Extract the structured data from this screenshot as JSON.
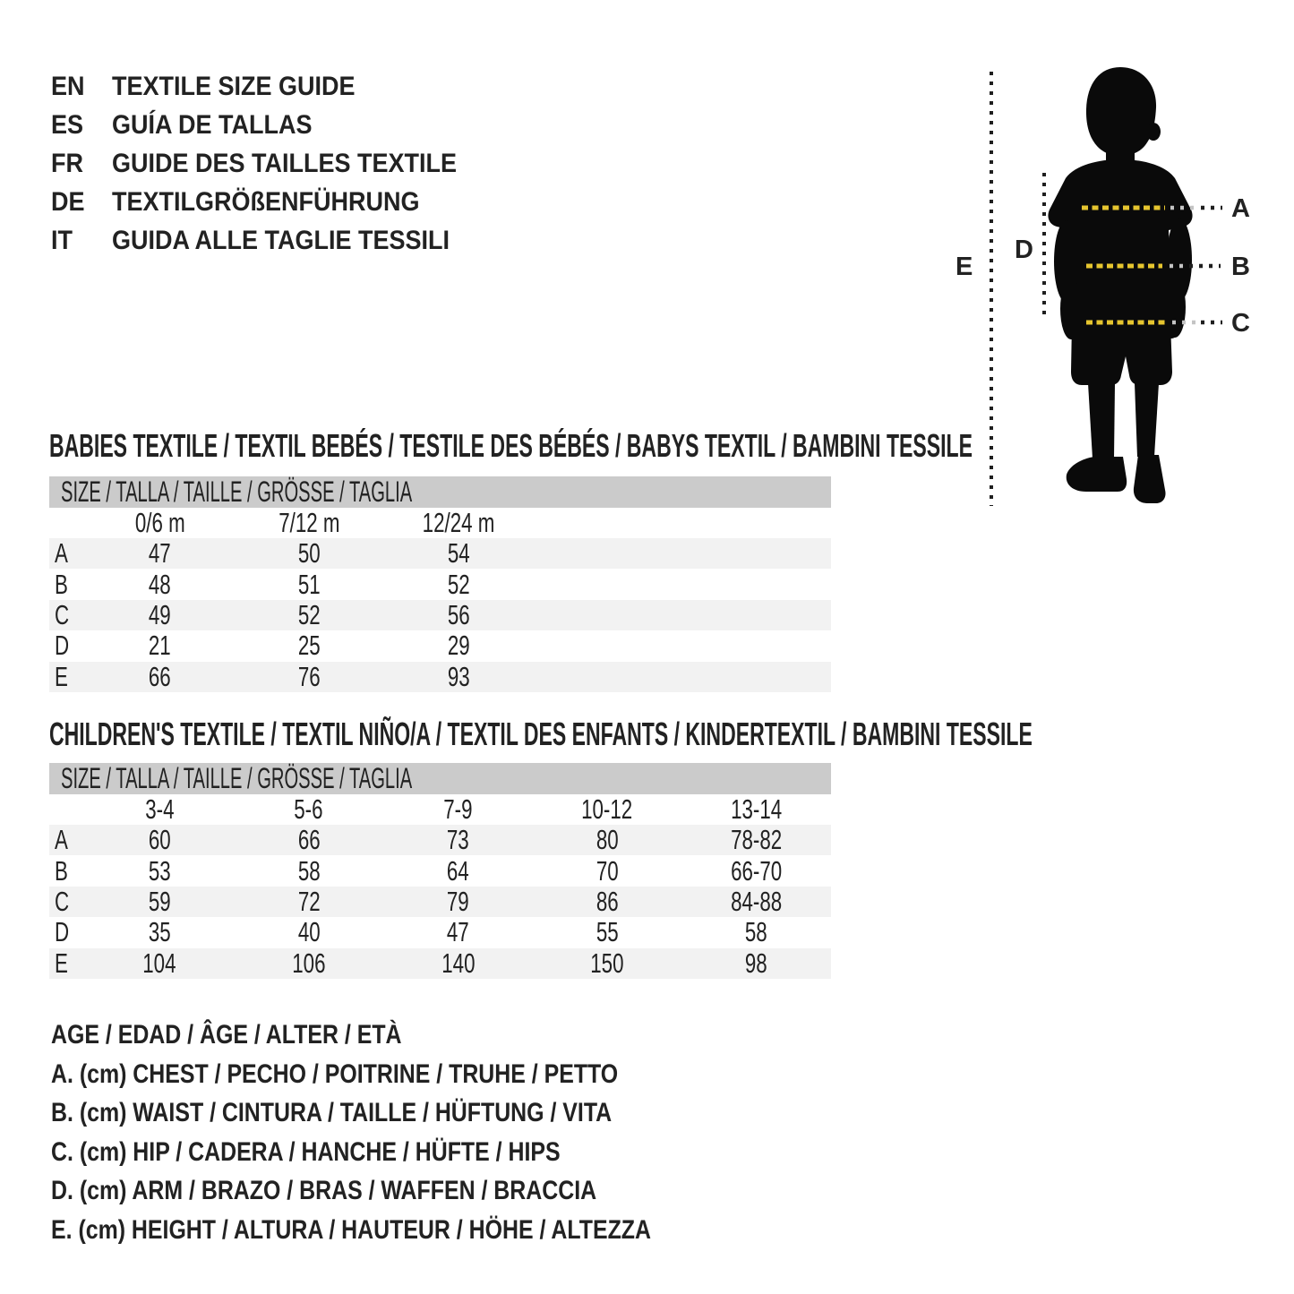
{
  "header": {
    "languages": [
      {
        "code": "EN",
        "title": "TEXTILE SIZE GUIDE"
      },
      {
        "code": "ES",
        "title": "GUÍA DE TALLAS"
      },
      {
        "code": "FR",
        "title": "GUIDE DES TAILLES TEXTILE"
      },
      {
        "code": "DE",
        "title": "TEXTILGRÖßENFÜHRUNG"
      },
      {
        "code": "IT",
        "title": "GUIDA ALLE TAGLIE TESSILI"
      }
    ]
  },
  "figure": {
    "measure_labels": {
      "a": "A",
      "b": "B",
      "c": "C",
      "d": "D",
      "e": "E"
    },
    "colors": {
      "silhouette": "#0a0a0a",
      "dash_yellow": "#e6c52f",
      "dash_black": "#1f1f1f",
      "dash_gray": "#c4c4c4"
    }
  },
  "babies": {
    "heading": "BABIES TEXTILE / TEXTIL BEBÉS / TESTILE DES BÉBÉS / BABYS TEXTIL / BAMBINI TESSILE",
    "size_header": "SIZE / TALLA / TAILLE / GRÖSSE / TAGLIA",
    "columns": [
      "0/6 m",
      "7/12 m",
      "12/24 m"
    ],
    "rows": [
      {
        "label": "A",
        "values": [
          "47",
          "50",
          "54"
        ]
      },
      {
        "label": "B",
        "values": [
          "48",
          "51",
          "52"
        ]
      },
      {
        "label": "C",
        "values": [
          "49",
          "52",
          "56"
        ]
      },
      {
        "label": "D",
        "values": [
          "21",
          "25",
          "29"
        ]
      },
      {
        "label": "E",
        "values": [
          "66",
          "76",
          "93"
        ]
      }
    ]
  },
  "children": {
    "heading": "CHILDREN'S TEXTILE / TEXTIL NIÑO/A / TEXTIL DES ENFANTS / KINDERTEXTIL / BAMBINI TESSILE",
    "size_header": "SIZE / TALLA / TAILLE / GRÖSSE / TAGLIA",
    "columns": [
      "3-4",
      "5-6",
      "7-9",
      "10-12",
      "13-14"
    ],
    "rows": [
      {
        "label": "A",
        "values": [
          "60",
          "66",
          "73",
          "80",
          "78-82"
        ]
      },
      {
        "label": "B",
        "values": [
          "53",
          "58",
          "64",
          "70",
          "66-70"
        ]
      },
      {
        "label": "C",
        "values": [
          "59",
          "72",
          "79",
          "86",
          "84-88"
        ]
      },
      {
        "label": "D",
        "values": [
          "35",
          "40",
          "47",
          "55",
          "58"
        ]
      },
      {
        "label": "E",
        "values": [
          "104",
          "106",
          "140",
          "150",
          "98"
        ]
      }
    ]
  },
  "legend": {
    "lines": [
      "AGE / EDAD / ÂGE / ALTER / ETÀ",
      "A. (cm) CHEST / PECHO / POITRINE / TRUHE / PETTO",
      "B. (cm) WAIST / CINTURA / TAILLE / HÜFTUNG / VITA",
      "C. (cm) HIP / CADERA / HANCHE / HÜFTE / HIPS",
      "D. (cm) ARM / BRAZO / BRAS / WAFFEN / BRACCIA",
      "E. (cm) HEIGHT / ALTURA / HAUTEUR / HÖHE / ALTEZZA"
    ]
  },
  "table_style_colors": {
    "header_bar_bg": "#cbcbcb",
    "stripe_bg": "#f2f2f2",
    "text": "#222222"
  }
}
